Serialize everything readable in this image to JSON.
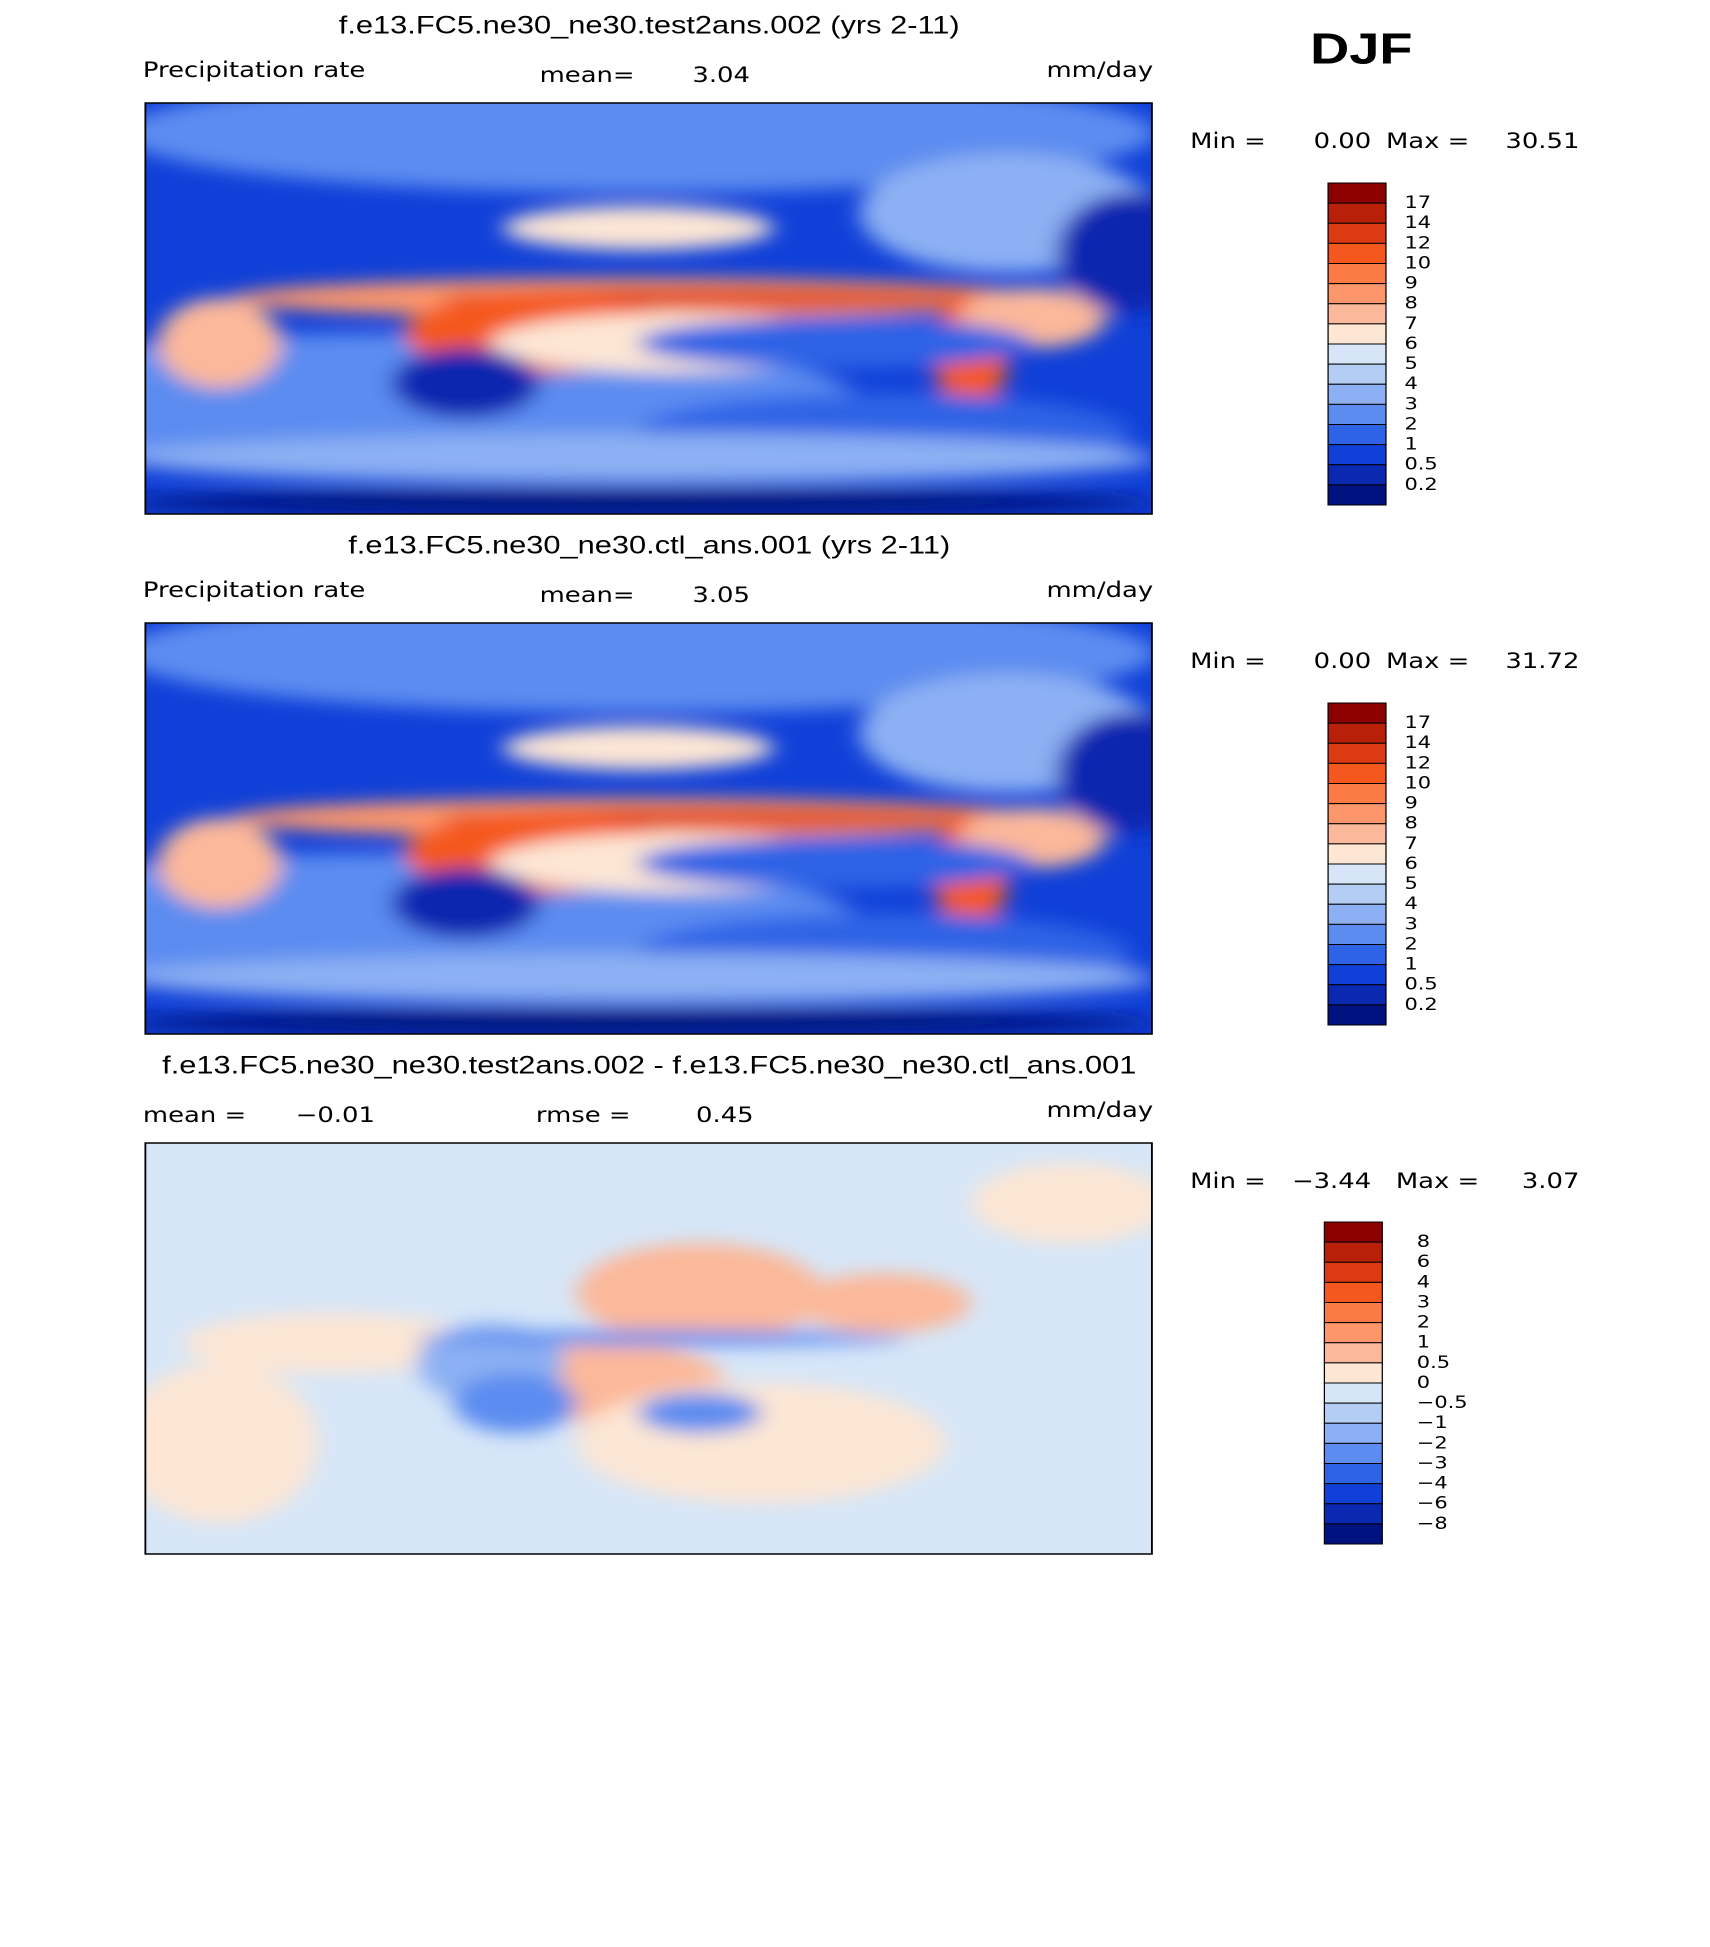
{
  "header": {
    "title": "DJF"
  },
  "panels": [
    {
      "kind": "field",
      "title": "f.e13.FC5.ne30_ne30.test2ans.002 (yrs 2-11)",
      "variable": "Precipitation rate",
      "stat_label": "mean=",
      "stat_value": "3.04",
      "units": "mm/day",
      "min_label": "Min =",
      "min_value": "0.00",
      "max_label": "Max =",
      "max_value": "30.51",
      "colorbar": {
        "labels": [
          "17",
          "14",
          "12",
          "10",
          "9",
          "8",
          "7",
          "6",
          "5",
          "4",
          "3",
          "2",
          "1",
          "0.5",
          "0.2"
        ],
        "colors": [
          "#8c0000",
          "#b8200a",
          "#dc3a12",
          "#f5581f",
          "#fc7a46",
          "#fd966a",
          "#fcb89a",
          "#fde6d4",
          "#d6e6f8",
          "#b4cdf5",
          "#8cb0f3",
          "#5c8cf0",
          "#2f63e6",
          "#1040d8",
          "#0a28b0",
          "#00127f"
        ]
      }
    },
    {
      "kind": "field",
      "title": "f.e13.FC5.ne30_ne30.ctl_ans.001 (yrs 2-11)",
      "variable": "Precipitation rate",
      "stat_label": "mean=",
      "stat_value": "3.05",
      "units": "mm/day",
      "min_label": "Min =",
      "min_value": "0.00",
      "max_label": "Max =",
      "max_value": "31.72",
      "colorbar": {
        "labels": [
          "17",
          "14",
          "12",
          "10",
          "9",
          "8",
          "7",
          "6",
          "5",
          "4",
          "3",
          "2",
          "1",
          "0.5",
          "0.2"
        ],
        "colors": [
          "#8c0000",
          "#b8200a",
          "#dc3a12",
          "#f5581f",
          "#fc7a46",
          "#fd966a",
          "#fcb89a",
          "#fde6d4",
          "#d6e6f8",
          "#b4cdf5",
          "#8cb0f3",
          "#5c8cf0",
          "#2f63e6",
          "#1040d8",
          "#0a28b0",
          "#00127f"
        ]
      }
    },
    {
      "kind": "diff",
      "title": "f.e13.FC5.ne30_ne30.test2ans.002 - f.e13.FC5.ne30_ne30.ctl_ans.001",
      "stat_label": "mean =",
      "stat_value": "−0.01",
      "stat2_label": "rmse =",
      "stat2_value": "0.45",
      "units": "mm/day",
      "min_label": "Min =",
      "min_value": "−3.44",
      "max_label": "Max =",
      "max_value": "3.07",
      "colorbar": {
        "labels": [
          "8",
          "6",
          "4",
          "3",
          "2",
          "1",
          "0.5",
          "0",
          "−0.5",
          "−1",
          "−2",
          "−3",
          "−4",
          "−6",
          "−8"
        ],
        "colors": [
          "#8c0000",
          "#b8200a",
          "#dc3a12",
          "#f5581f",
          "#fc7a46",
          "#fd966a",
          "#fcb89a",
          "#fde6d4",
          "#d6e6f8",
          "#b4cdf5",
          "#8cb0f3",
          "#5c8cf0",
          "#2f63e6",
          "#1040d8",
          "#0a28b0",
          "#00127f"
        ]
      }
    }
  ]
}
